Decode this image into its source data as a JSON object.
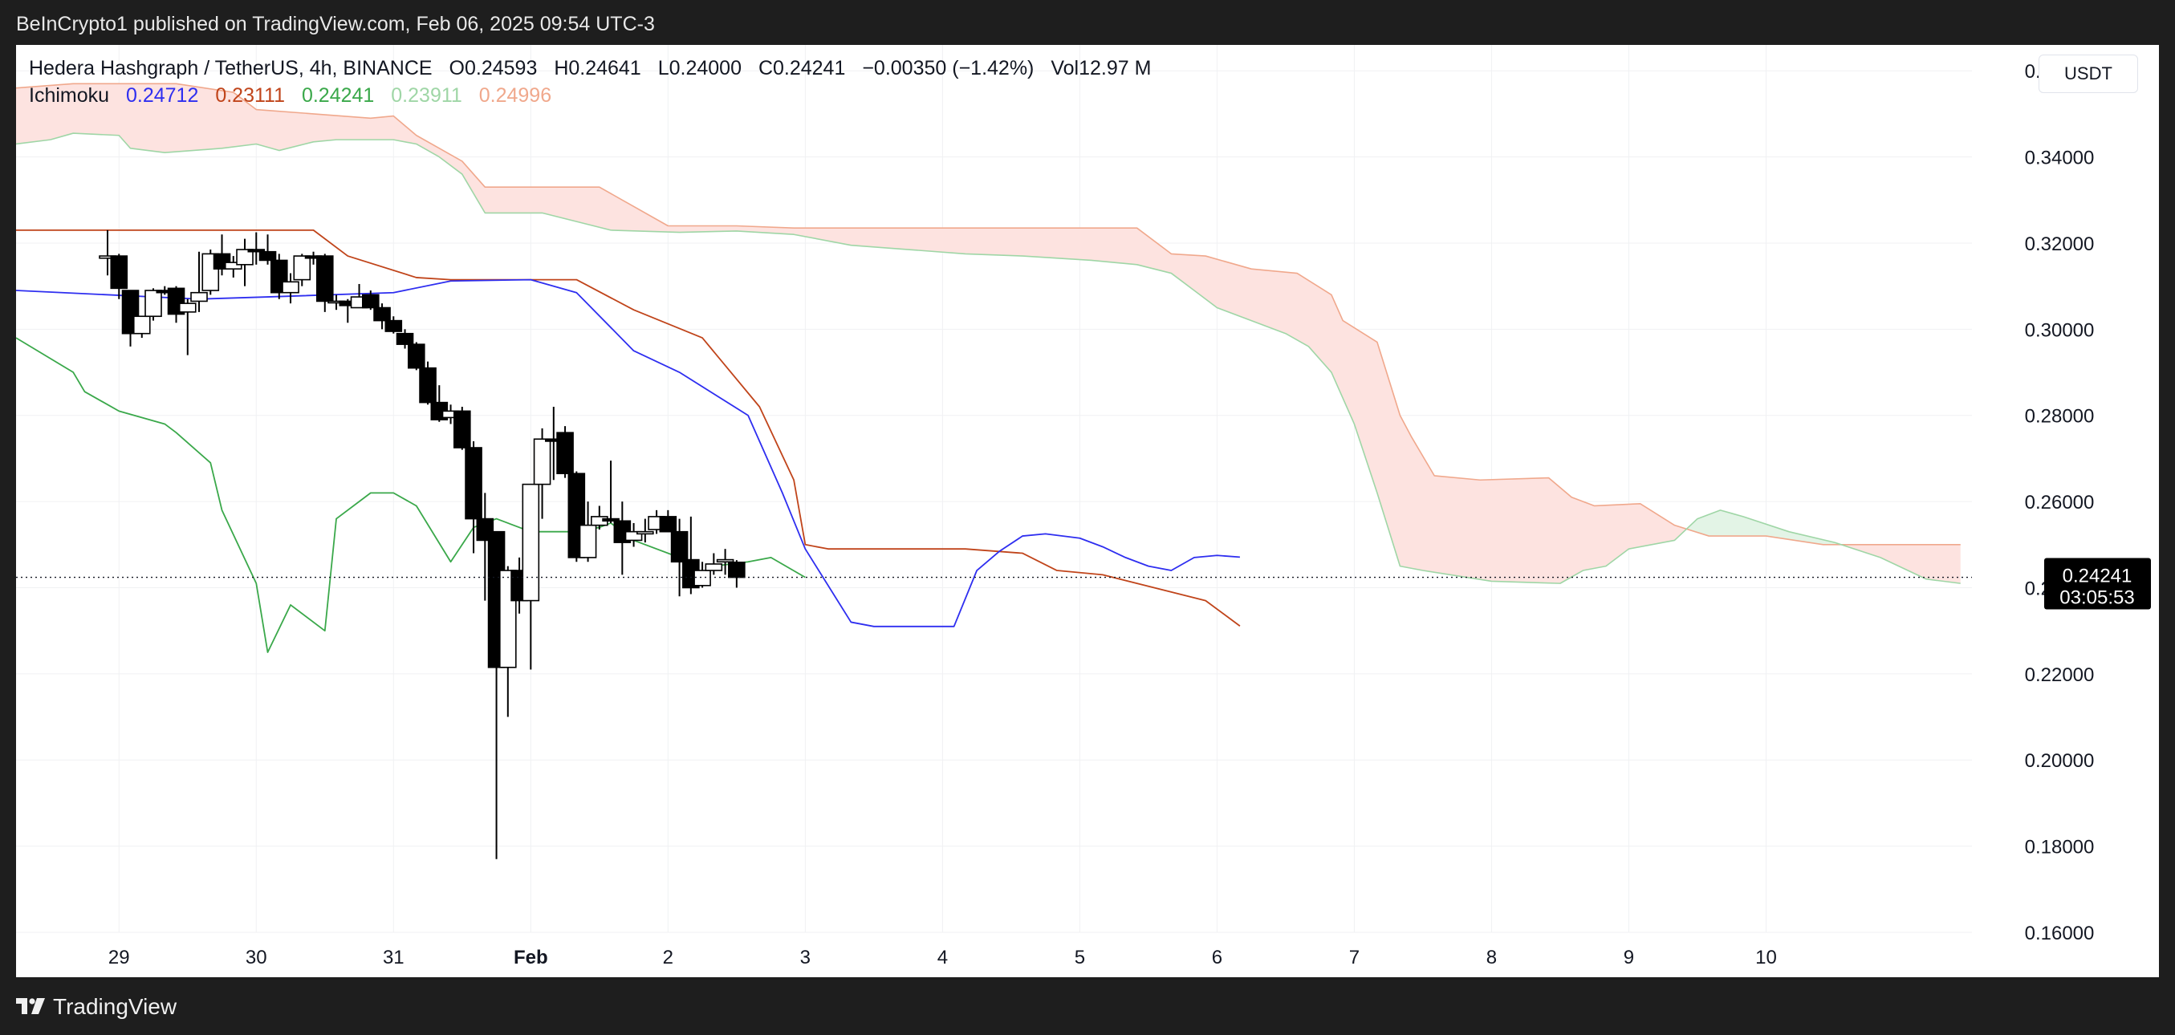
{
  "header": {
    "publisher": "BeInCrypto1 published on TradingView.com, Feb 06, 2025 09:54 UTC-3"
  },
  "legend": {
    "symbol": "Hedera Hashgraph / TetherUS, 4h, BINANCE",
    "o_label": "O",
    "o": "0.24593",
    "h_label": "H",
    "h": "0.24641",
    "l_label": "L",
    "l": "0.24000",
    "c_label": "C",
    "c": "0.24241",
    "change": "−0.00350 (−1.42%)",
    "vol_label": "Vol",
    "vol": "12.97 M",
    "indicator": "Ichimoku",
    "ich": [
      "0.24712",
      "0.23111",
      "0.24241",
      "0.23911",
      "0.24996"
    ]
  },
  "currency": "USDT",
  "price_label": {
    "value": "0.24241",
    "countdown": "03:05:53"
  },
  "footer": {
    "brand": "TradingView"
  },
  "colors": {
    "up_candle": "#ffffff",
    "down_candle": "#000000",
    "conversion": "#2e2ef0",
    "base": "#c0441a",
    "lagging": "#3aa84a",
    "span_a": "#9fd6a6",
    "span_b": "#f0a88c",
    "cloud_bear": "#fde3e0",
    "cloud_bull": "#e3f4e6",
    "ich_colors": [
      "#2e2ef0",
      "#c0441a",
      "#3aa84a",
      "#9fd6a6",
      "#f0a88c"
    ]
  },
  "chart_data": {
    "type": "candlestick",
    "title": "Hedera Hashgraph / TetherUS, 4h, BINANCE",
    "xlim": [
      -8,
      163
    ],
    "ylim": [
      0.16,
      0.366
    ],
    "y_ticks": [
      0.16,
      0.18,
      0.2,
      0.22,
      0.24,
      0.26,
      0.28,
      0.3,
      0.32,
      0.34,
      0.36
    ],
    "y_tick_labels": [
      "0.16000",
      "0.18000",
      "0.20000",
      "0.22000",
      "0.24000",
      "0.26000",
      "0.28000",
      "0.30000",
      "0.32000",
      "0.34000",
      "0.36000"
    ],
    "x_tick_positions": [
      1,
      13,
      25,
      37,
      49,
      61,
      73,
      85,
      97,
      109,
      121,
      133,
      145
    ],
    "x_tick_labels": [
      "29",
      "30",
      "31",
      "Feb",
      "2",
      "3",
      "4",
      "5",
      "6",
      "7",
      "8",
      "9",
      "10"
    ],
    "x_tick_bold": [
      false,
      false,
      false,
      true,
      false,
      false,
      false,
      false,
      false,
      false,
      false,
      false,
      false
    ],
    "candles": [
      [
        0.3165,
        0.323,
        0.3125,
        0.317
      ],
      [
        0.317,
        0.3175,
        0.307,
        0.3095
      ],
      [
        0.309,
        0.309,
        0.296,
        0.299
      ],
      [
        0.299,
        0.303,
        0.298,
        0.303
      ],
      [
        0.303,
        0.3095,
        0.302,
        0.309
      ],
      [
        0.309,
        0.31,
        0.308,
        0.3085
      ],
      [
        0.3095,
        0.31,
        0.3015,
        0.3035
      ],
      [
        0.304,
        0.307,
        0.294,
        0.306
      ],
      [
        0.3065,
        0.318,
        0.304,
        0.3085
      ],
      [
        0.309,
        0.3185,
        0.308,
        0.3175
      ],
      [
        0.3175,
        0.322,
        0.3125,
        0.314
      ],
      [
        0.314,
        0.317,
        0.312,
        0.3155
      ],
      [
        0.315,
        0.321,
        0.31,
        0.3185
      ],
      [
        0.3185,
        0.3225,
        0.315,
        0.318
      ],
      [
        0.318,
        0.322,
        0.315,
        0.316
      ],
      [
        0.316,
        0.3175,
        0.307,
        0.3085
      ],
      [
        0.3085,
        0.313,
        0.306,
        0.311
      ],
      [
        0.3115,
        0.3175,
        0.31,
        0.317
      ],
      [
        0.317,
        0.318,
        0.315,
        0.3165
      ],
      [
        0.317,
        0.3175,
        0.304,
        0.3065
      ],
      [
        0.3065,
        0.308,
        0.3045,
        0.3065
      ],
      [
        0.3065,
        0.307,
        0.3015,
        0.3055
      ],
      [
        0.305,
        0.3105,
        0.306,
        0.3075
      ],
      [
        0.308,
        0.309,
        0.3045,
        0.305
      ],
      [
        0.305,
        0.306,
        0.3,
        0.302
      ],
      [
        0.302,
        0.303,
        0.299,
        0.2995
      ],
      [
        0.299,
        0.3,
        0.2955,
        0.2965
      ],
      [
        0.2965,
        0.297,
        0.2905,
        0.291
      ],
      [
        0.291,
        0.2925,
        0.2825,
        0.283
      ],
      [
        0.283,
        0.287,
        0.2785,
        0.279
      ],
      [
        0.2795,
        0.2825,
        0.278,
        0.281
      ],
      [
        0.281,
        0.282,
        0.272,
        0.2725
      ],
      [
        0.2725,
        0.274,
        0.248,
        0.256
      ],
      [
        0.256,
        0.262,
        0.237,
        0.251
      ],
      [
        0.253,
        0.253,
        0.177,
        0.2215
      ],
      [
        0.2215,
        0.245,
        0.21,
        0.244
      ],
      [
        0.244,
        0.247,
        0.234,
        0.237
      ],
      [
        0.237,
        0.264,
        0.221,
        0.264
      ],
      [
        0.264,
        0.277,
        0.256,
        0.2745
      ],
      [
        0.2745,
        0.282,
        0.265,
        0.274
      ],
      [
        0.276,
        0.2775,
        0.2655,
        0.2665
      ],
      [
        0.2665,
        0.267,
        0.246,
        0.247
      ],
      [
        0.247,
        0.26,
        0.246,
        0.2545
      ],
      [
        0.2545,
        0.259,
        0.2535,
        0.2565
      ],
      [
        0.256,
        0.2695,
        0.255,
        0.2555
      ],
      [
        0.2555,
        0.26,
        0.243,
        0.2505
      ],
      [
        0.251,
        0.255,
        0.2495,
        0.253
      ],
      [
        0.2525,
        0.256,
        0.2505,
        0.253
      ],
      [
        0.2535,
        0.258,
        0.2525,
        0.2565
      ],
      [
        0.2565,
        0.258,
        0.253,
        0.253
      ],
      [
        0.253,
        0.256,
        0.238,
        0.246
      ],
      [
        0.2465,
        0.2565,
        0.2385,
        0.24
      ],
      [
        0.2405,
        0.246,
        0.24,
        0.244
      ],
      [
        0.244,
        0.248,
        0.243,
        0.2455
      ],
      [
        0.246,
        0.249,
        0.243,
        0.2465
      ],
      [
        0.2459,
        0.2464,
        0.24,
        0.2424
      ]
    ],
    "conversion_line": [
      [
        -8,
        0.309
      ],
      [
        8,
        0.307
      ],
      [
        14,
        0.3075
      ],
      [
        25,
        0.3085
      ],
      [
        30,
        0.3112
      ],
      [
        37,
        0.3115
      ],
      [
        41,
        0.3085
      ],
      [
        46,
        0.295
      ],
      [
        50,
        0.29
      ],
      [
        56,
        0.28
      ],
      [
        59,
        0.262
      ],
      [
        61,
        0.249
      ],
      [
        65,
        0.232
      ],
      [
        67,
        0.231
      ],
      [
        74,
        0.231
      ],
      [
        76,
        0.244
      ],
      [
        78,
        0.2485
      ],
      [
        80,
        0.252
      ],
      [
        82,
        0.2525
      ],
      [
        85,
        0.2515
      ],
      [
        87,
        0.2495
      ],
      [
        89,
        0.247
      ],
      [
        91,
        0.245
      ],
      [
        93,
        0.244
      ],
      [
        95,
        0.247
      ],
      [
        97,
        0.2475
      ],
      [
        99,
        0.2471
      ]
    ],
    "base_line": [
      [
        -8,
        0.323
      ],
      [
        18,
        0.323
      ],
      [
        21,
        0.317
      ],
      [
        27,
        0.312
      ],
      [
        30,
        0.3115
      ],
      [
        41,
        0.3115
      ],
      [
        46,
        0.3045
      ],
      [
        52,
        0.298
      ],
      [
        57,
        0.282
      ],
      [
        60,
        0.265
      ],
      [
        61,
        0.25
      ],
      [
        63,
        0.249
      ],
      [
        75,
        0.249
      ],
      [
        80,
        0.248
      ],
      [
        83,
        0.244
      ],
      [
        87,
        0.243
      ],
      [
        93,
        0.239
      ],
      [
        96,
        0.237
      ],
      [
        99,
        0.2311
      ]
    ],
    "lagging_span": [
      [
        -8,
        0.298
      ],
      [
        -3,
        0.29
      ],
      [
        -2,
        0.2855
      ],
      [
        1,
        0.281
      ],
      [
        5,
        0.278
      ],
      [
        6,
        0.276
      ],
      [
        9,
        0.269
      ],
      [
        10,
        0.258
      ],
      [
        13,
        0.241
      ],
      [
        14,
        0.225
      ],
      [
        16,
        0.236
      ],
      [
        19,
        0.23
      ],
      [
        20,
        0.256
      ],
      [
        23,
        0.262
      ],
      [
        25,
        0.262
      ],
      [
        27,
        0.259
      ],
      [
        30,
        0.246
      ],
      [
        32,
        0.254
      ],
      [
        34,
        0.256
      ],
      [
        35,
        0.255
      ],
      [
        37,
        0.253
      ],
      [
        39,
        0.253
      ],
      [
        41,
        0.253
      ],
      [
        43,
        0.254
      ],
      [
        44,
        0.255
      ],
      [
        46,
        0.251
      ],
      [
        51,
        0.246
      ],
      [
        52,
        0.242
      ],
      [
        53,
        0.245
      ],
      [
        56,
        0.246
      ],
      [
        58,
        0.247
      ],
      [
        61,
        0.2424
      ]
    ],
    "senkou_a": [
      [
        -8,
        0.343
      ],
      [
        -5,
        0.344
      ],
      [
        -3,
        0.3455
      ],
      [
        1,
        0.345
      ],
      [
        2,
        0.342
      ],
      [
        5,
        0.341
      ],
      [
        10,
        0.342
      ],
      [
        13,
        0.343
      ],
      [
        15,
        0.3415
      ],
      [
        18,
        0.3435
      ],
      [
        20,
        0.344
      ],
      [
        25,
        0.344
      ],
      [
        27,
        0.343
      ],
      [
        29,
        0.34
      ],
      [
        31,
        0.336
      ],
      [
        33,
        0.327
      ],
      [
        38,
        0.327
      ],
      [
        41,
        0.325
      ],
      [
        44,
        0.323
      ],
      [
        50,
        0.3225
      ],
      [
        55,
        0.3228
      ],
      [
        60,
        0.322
      ],
      [
        65,
        0.3195
      ],
      [
        70,
        0.3185
      ],
      [
        75,
        0.3175
      ],
      [
        80,
        0.317
      ],
      [
        86,
        0.316
      ],
      [
        90,
        0.315
      ],
      [
        93,
        0.313
      ],
      [
        95,
        0.309
      ],
      [
        97,
        0.305
      ],
      [
        100,
        0.302
      ],
      [
        103,
        0.299
      ],
      [
        105,
        0.296
      ],
      [
        107,
        0.29
      ],
      [
        109,
        0.278
      ],
      [
        111,
        0.262
      ],
      [
        113,
        0.245
      ],
      [
        115,
        0.244
      ],
      [
        121,
        0.2415
      ],
      [
        127,
        0.241
      ],
      [
        129,
        0.244
      ],
      [
        131,
        0.245
      ],
      [
        133,
        0.249
      ],
      [
        137,
        0.251
      ],
      [
        139,
        0.256
      ],
      [
        141,
        0.258
      ],
      [
        143,
        0.2565
      ],
      [
        147,
        0.253
      ],
      [
        151,
        0.2505
      ],
      [
        155,
        0.247
      ],
      [
        159,
        0.242
      ],
      [
        162,
        0.241
      ]
    ],
    "senkou_b": [
      [
        -8,
        0.356
      ],
      [
        -3,
        0.357
      ],
      [
        1,
        0.357
      ],
      [
        6,
        0.357
      ],
      [
        11,
        0.355
      ],
      [
        13,
        0.351
      ],
      [
        18,
        0.35
      ],
      [
        23,
        0.349
      ],
      [
        25,
        0.3495
      ],
      [
        27,
        0.345
      ],
      [
        29,
        0.342
      ],
      [
        31,
        0.339
      ],
      [
        33,
        0.333
      ],
      [
        43,
        0.333
      ],
      [
        45,
        0.33
      ],
      [
        49,
        0.324
      ],
      [
        55,
        0.324
      ],
      [
        60,
        0.3235
      ],
      [
        66,
        0.3235
      ],
      [
        70,
        0.3235
      ],
      [
        90,
        0.3235
      ],
      [
        93,
        0.3175
      ],
      [
        96,
        0.317
      ],
      [
        100,
        0.314
      ],
      [
        104,
        0.313
      ],
      [
        107,
        0.308
      ],
      [
        108,
        0.302
      ],
      [
        111,
        0.297
      ],
      [
        113,
        0.28
      ],
      [
        114,
        0.275
      ],
      [
        116,
        0.266
      ],
      [
        120,
        0.265
      ],
      [
        126,
        0.2655
      ],
      [
        128,
        0.261
      ],
      [
        130,
        0.259
      ],
      [
        134,
        0.2595
      ],
      [
        137,
        0.2545
      ],
      [
        140,
        0.252
      ],
      [
        145,
        0.252
      ],
      [
        150,
        0.25
      ],
      [
        155,
        0.25
      ],
      [
        159,
        0.25
      ],
      [
        162,
        0.25
      ]
    ],
    "current_price": 0.24241
  }
}
